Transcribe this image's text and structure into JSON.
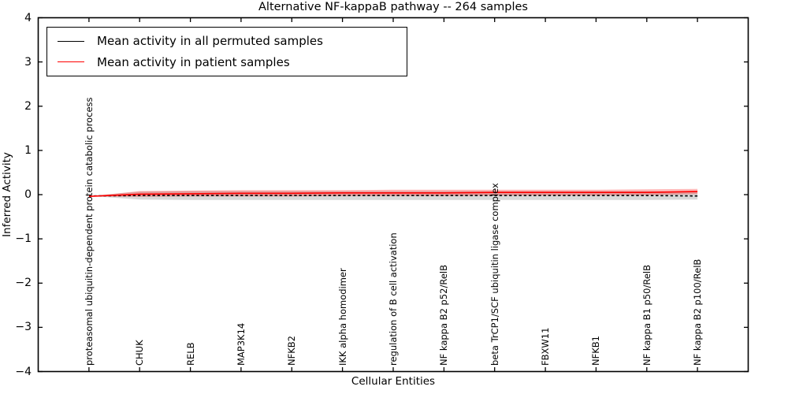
{
  "figure": {
    "title": "Alternative NF-kappaB pathway -- 264 samples",
    "xlabel": "Cellular Entities",
    "ylabel": "Inferred Activity",
    "legend": [
      {
        "label": "Mean activity in all permuted samples",
        "color": "#000000"
      },
      {
        "label": "Mean activity in patient samples",
        "color": "#ff0000"
      }
    ],
    "background_color": "#ffffff",
    "frame_color": "#000000"
  },
  "chart_data": {
    "type": "line",
    "title": "Alternative NF-kappaB pathway -- 264 samples",
    "xlabel": "Cellular Entities",
    "ylabel": "Inferred Activity",
    "ylim": [
      -4,
      4
    ],
    "ytick_labels": [
      "4",
      "3",
      "2",
      "1",
      "0",
      "−1",
      "−2",
      "−3",
      "−4"
    ],
    "ytick_values": [
      4,
      3,
      2,
      1,
      0,
      -1,
      -2,
      -3,
      -4
    ],
    "grid": false,
    "legend_position": "upper left",
    "categories": [
      "proteasomal ubiquitin-dependent protein catabolic process",
      "CHUK",
      "RELB",
      "MAP3K14",
      "NFKB2",
      "IKK alpha homodimer",
      "regulation of B cell activation",
      "NF kappa B2 p52/RelB",
      "beta TrCP1/SCF ubiquitin ligase complex",
      "FBXW11",
      "NFKB1",
      "NF kappa B1 p50/RelB",
      "NF kappa B2 p100/RelB"
    ],
    "series": [
      {
        "name": "Mean activity in all permuted samples",
        "color": "#000000",
        "style": "dashed",
        "values": [
          -0.03,
          -0.02,
          -0.02,
          -0.02,
          -0.02,
          -0.02,
          -0.02,
          -0.02,
          -0.02,
          -0.02,
          -0.02,
          -0.02,
          -0.03
        ]
      },
      {
        "name": "Mean activity in patient samples",
        "color": "#ff0000",
        "style": "solid",
        "values": [
          -0.04,
          0.01,
          0.02,
          0.03,
          0.03,
          0.04,
          0.04,
          0.04,
          0.05,
          0.05,
          0.05,
          0.05,
          0.07
        ]
      }
    ],
    "bands": [
      {
        "series": "Mean activity in all permuted samples",
        "color": "rgba(128,128,128,0.30)",
        "upper": [
          -0.03,
          0.07,
          0.08,
          0.08,
          0.08,
          0.08,
          0.08,
          0.08,
          0.08,
          0.08,
          0.08,
          0.08,
          0.06
        ],
        "lower": [
          -0.03,
          -0.11,
          -0.12,
          -0.12,
          -0.12,
          -0.12,
          -0.12,
          -0.12,
          -0.12,
          -0.12,
          -0.12,
          -0.12,
          -0.11
        ]
      },
      {
        "series": "Mean activity in patient samples",
        "color": "rgba(255,0,0,0.28)",
        "upper": [
          -0.04,
          0.08,
          0.09,
          0.1,
          0.1,
          0.1,
          0.11,
          0.11,
          0.11,
          0.11,
          0.11,
          0.12,
          0.13
        ],
        "lower": [
          -0.04,
          -0.05,
          -0.04,
          -0.04,
          -0.04,
          -0.03,
          -0.03,
          -0.03,
          -0.02,
          -0.02,
          -0.02,
          -0.01,
          0.01
        ]
      }
    ]
  }
}
